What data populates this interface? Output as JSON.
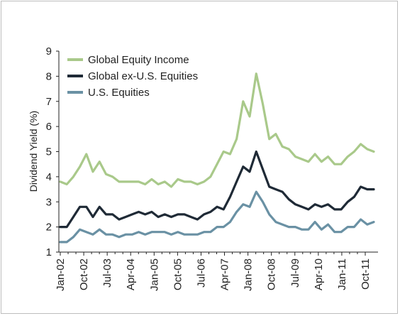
{
  "chart_data": {
    "type": "line",
    "title": "",
    "xlabel": "",
    "ylabel": "Dividend Yield (%)",
    "ylim": [
      1,
      9
    ],
    "yticks": [
      "1",
      "2",
      "3",
      "4",
      "5",
      "6",
      "7",
      "8",
      "9"
    ],
    "xticks": [
      "Jan-02",
      "Oct-02",
      "Jul-03",
      "Apr-04",
      "Jan-05",
      "Oct-05",
      "Jul-06",
      "Apr-07",
      "Jan-08",
      "Oct-08",
      "Jul-09",
      "Apr-10",
      "Jan-11",
      "Oct-11"
    ],
    "grid": false,
    "legend_position": "top-left",
    "x": [
      "Jan-02",
      "Apr-02",
      "Jul-02",
      "Oct-02",
      "Jan-03",
      "Apr-03",
      "Jul-03",
      "Oct-03",
      "Jan-04",
      "Apr-04",
      "Jul-04",
      "Oct-04",
      "Jan-05",
      "Apr-05",
      "Jul-05",
      "Oct-05",
      "Jan-06",
      "Apr-06",
      "Jul-06",
      "Oct-06",
      "Jan-07",
      "Apr-07",
      "Jul-07",
      "Oct-07",
      "Jan-08",
      "Apr-08",
      "Jul-08",
      "Sep-08",
      "Oct-08",
      "Nov-08",
      "Dec-08",
      "Jan-09",
      "Feb-09",
      "Mar-09",
      "Apr-09",
      "May-09",
      "Jul-09",
      "Oct-09",
      "Jan-10",
      "Apr-10",
      "Jul-10",
      "Oct-10",
      "Jan-11",
      "Apr-11",
      "Jul-11",
      "Aug-11",
      "Sep-11",
      "Oct-11",
      "Nov-11"
    ],
    "series": [
      {
        "name": "Global Equity Income",
        "color": "#a9c98a",
        "values": [
          3.8,
          3.7,
          4.0,
          4.4,
          4.9,
          4.2,
          4.6,
          4.1,
          4.0,
          3.8,
          3.8,
          3.8,
          3.8,
          3.7,
          3.9,
          3.7,
          3.8,
          3.6,
          3.9,
          3.8,
          3.8,
          3.7,
          3.8,
          4.0,
          4.5,
          5.0,
          4.9,
          5.5,
          7.0,
          6.4,
          8.1,
          6.9,
          5.5,
          5.7,
          5.2,
          5.1,
          4.8,
          4.7,
          4.6,
          4.9,
          4.6,
          4.8,
          4.5,
          4.5,
          4.8,
          5.0,
          5.3,
          5.1,
          5.0
        ]
      },
      {
        "name": "Global ex-U.S. Equities",
        "color": "#1f2a36",
        "values": [
          2.0,
          2.0,
          2.4,
          2.8,
          2.8,
          2.4,
          2.8,
          2.5,
          2.5,
          2.3,
          2.4,
          2.5,
          2.6,
          2.5,
          2.6,
          2.4,
          2.5,
          2.4,
          2.5,
          2.5,
          2.4,
          2.3,
          2.5,
          2.6,
          2.8,
          2.7,
          3.2,
          3.8,
          4.4,
          4.2,
          5.0,
          4.3,
          3.6,
          3.5,
          3.4,
          3.1,
          2.9,
          2.8,
          2.7,
          2.9,
          2.8,
          2.9,
          2.7,
          2.7,
          3.0,
          3.2,
          3.6,
          3.5,
          3.5
        ]
      },
      {
        "name": "U.S. Equities",
        "color": "#6a91a4",
        "values": [
          1.4,
          1.4,
          1.6,
          1.9,
          1.8,
          1.7,
          1.9,
          1.7,
          1.7,
          1.6,
          1.7,
          1.7,
          1.8,
          1.7,
          1.8,
          1.8,
          1.8,
          1.7,
          1.8,
          1.7,
          1.7,
          1.7,
          1.8,
          1.8,
          2.0,
          2.0,
          2.2,
          2.6,
          2.9,
          2.8,
          3.4,
          3.0,
          2.5,
          2.2,
          2.1,
          2.0,
          2.0,
          1.9,
          1.9,
          2.2,
          1.9,
          2.1,
          1.8,
          1.8,
          2.0,
          2.0,
          2.3,
          2.1,
          2.2
        ]
      }
    ]
  }
}
